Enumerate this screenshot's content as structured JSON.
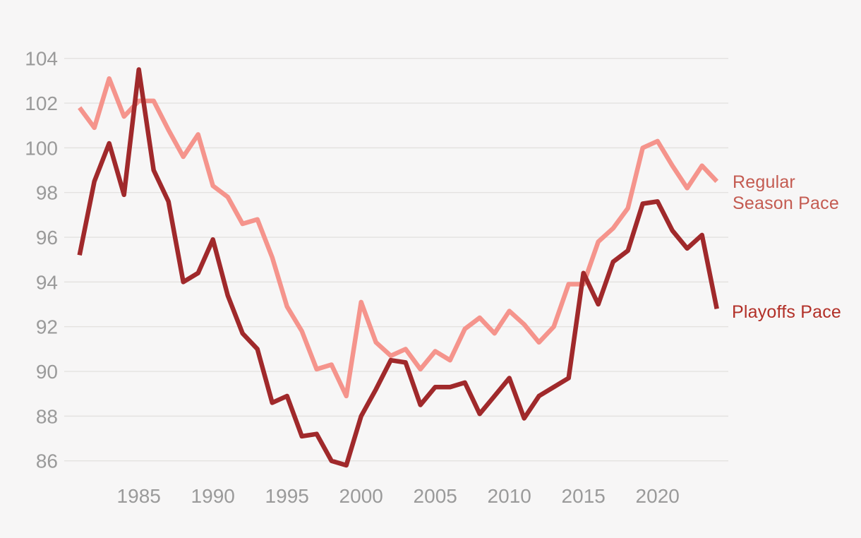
{
  "chart_data": {
    "type": "line",
    "title": "",
    "grid": "horizontal",
    "legend_position": "right-of-line-ends",
    "x": [
      1981,
      1982,
      1983,
      1984,
      1985,
      1986,
      1987,
      1988,
      1989,
      1990,
      1991,
      1992,
      1993,
      1994,
      1995,
      1996,
      1997,
      1998,
      1999,
      2000,
      2001,
      2002,
      2003,
      2004,
      2005,
      2006,
      2007,
      2008,
      2009,
      2010,
      2011,
      2012,
      2013,
      2014,
      2015,
      2016,
      2017,
      2018,
      2019,
      2020,
      2021,
      2022,
      2023,
      2024
    ],
    "x_tick_labels": [
      "1985",
      "1990",
      "1995",
      "2000",
      "2005",
      "2010",
      "2015",
      "2020"
    ],
    "x_tick_years": [
      1985,
      1990,
      1995,
      2000,
      2005,
      2010,
      2015,
      2020
    ],
    "y_tick_labels": [
      "86",
      "88",
      "90",
      "92",
      "94",
      "96",
      "98",
      "100",
      "102",
      "104"
    ],
    "y_ticks": [
      86,
      88,
      90,
      92,
      94,
      96,
      98,
      100,
      102,
      104
    ],
    "ylim": [
      85.0,
      104.7
    ],
    "series": [
      {
        "name": "Regular Season Pace",
        "label_lines": [
          "Regular",
          "Season Pace"
        ],
        "color": "#F5948C",
        "label_color": "#C45B51",
        "values": [
          101.8,
          100.9,
          103.1,
          101.4,
          102.1,
          102.1,
          100.8,
          99.6,
          100.6,
          98.3,
          97.8,
          96.6,
          96.8,
          95.1,
          92.9,
          91.8,
          90.1,
          90.3,
          88.9,
          93.1,
          91.3,
          90.7,
          91.0,
          90.1,
          90.9,
          90.5,
          91.9,
          92.4,
          91.7,
          92.7,
          92.1,
          91.3,
          92.0,
          93.9,
          93.9,
          95.8,
          96.4,
          97.3,
          100.0,
          100.3,
          99.2,
          98.2,
          99.2,
          98.5
        ]
      },
      {
        "name": "Playoffs Pace",
        "label_lines": [
          "Playoffs Pace"
        ],
        "color": "#A0292B",
        "label_color": "#B23028",
        "values": [
          95.2,
          98.5,
          100.2,
          97.9,
          103.5,
          99.0,
          97.6,
          94.0,
          94.4,
          95.9,
          93.4,
          91.7,
          91.0,
          88.6,
          88.9,
          87.1,
          87.2,
          86.0,
          85.8,
          88.0,
          89.2,
          90.5,
          90.4,
          88.5,
          89.3,
          89.3,
          89.5,
          88.1,
          88.9,
          89.7,
          87.9,
          88.9,
          89.3,
          89.7,
          94.4,
          93.0,
          94.9,
          95.4,
          97.5,
          97.6,
          96.3,
          95.5,
          96.1,
          92.8
        ]
      }
    ],
    "colors": {
      "background": "#F7F6F6",
      "gridline": "#E4E2E0",
      "axis_text": "#9A9A9A"
    }
  }
}
